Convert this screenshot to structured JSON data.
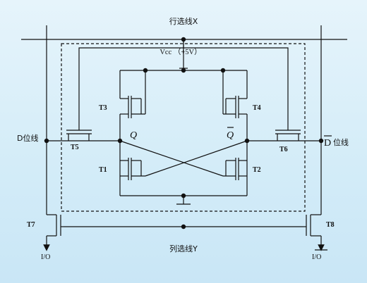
{
  "title_row_select": "行选线X",
  "supply_label": "Vcc （+5V）",
  "bit_line_left": "D位线",
  "bit_line_right_letter": "D",
  "bit_line_right_suffix": "位线",
  "col_select": "列选线Y",
  "io_left": "I/O",
  "io_right": "I/O",
  "node_q": "Q",
  "node_qbar": "Q",
  "transistors": {
    "t1": "T1",
    "t2": "T2",
    "t3": "T3",
    "t4": "T4",
    "t5": "T5",
    "t6": "T6",
    "t7": "T7",
    "t8": "T8"
  },
  "colors": {
    "line": "#111111",
    "background": "#dff1fa"
  }
}
